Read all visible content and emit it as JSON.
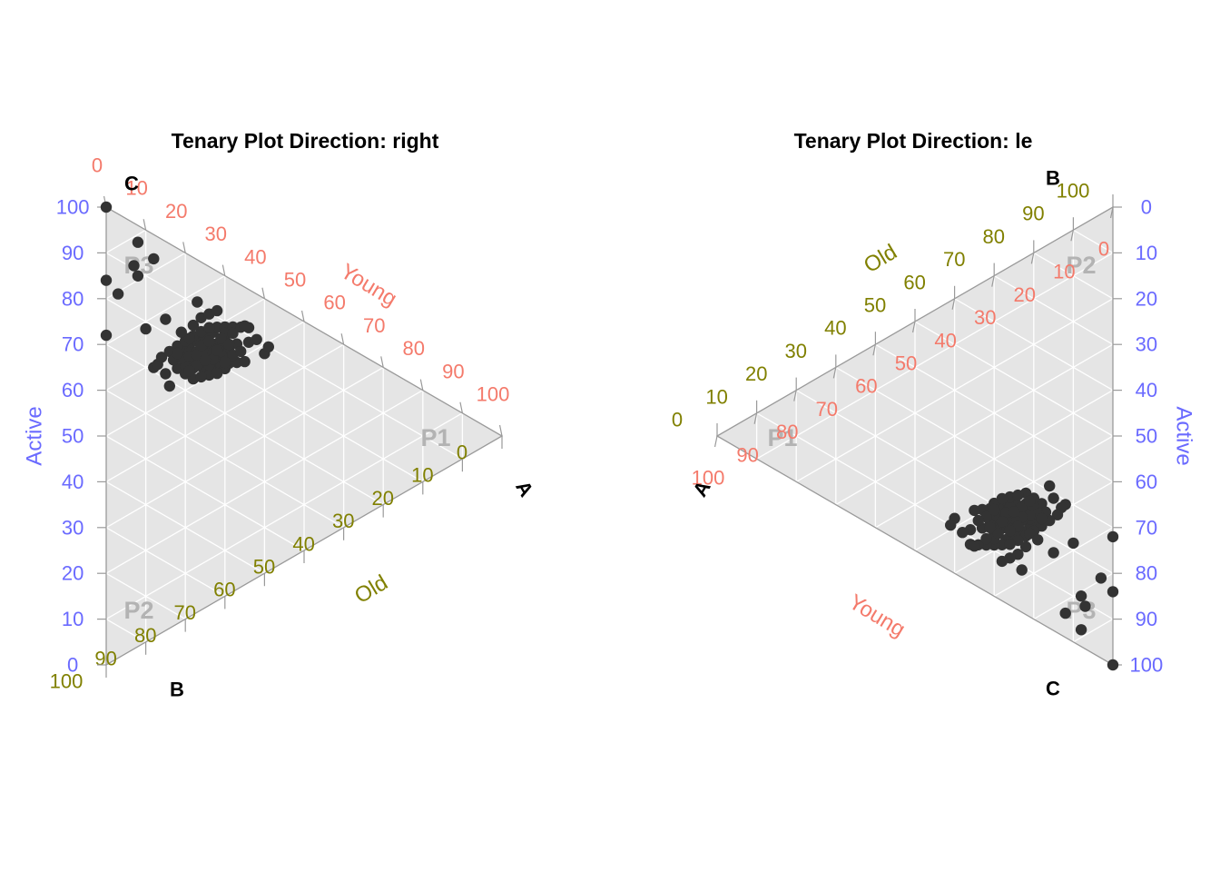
{
  "colors": {
    "panel": "#e5e5e5",
    "grid": "#ffffff",
    "border": "#9a9a9a",
    "point": "#333333",
    "young": "#f47a6b",
    "old": "#808000",
    "active": "#6a6aff",
    "region_label": "#b3b3b3"
  },
  "chart_data": [
    {
      "type": "scatter",
      "subtype": "ternary",
      "title": "Tenary Plot Direction: right",
      "direction": "right",
      "vertex_labels": {
        "A": "A",
        "B": "B",
        "C": "C"
      },
      "axes": {
        "young": {
          "label": "Young",
          "ticks": [
            "0",
            "10",
            "20",
            "30",
            "40",
            "50",
            "60",
            "70",
            "80",
            "90",
            "100"
          ]
        },
        "old": {
          "label": "Old",
          "ticks": [
            "0",
            "10",
            "20",
            "30",
            "40",
            "50",
            "60",
            "70",
            "80",
            "90",
            "100"
          ]
        },
        "active": {
          "label": "Active",
          "ticks": [
            "0",
            "10",
            "20",
            "30",
            "40",
            "50",
            "60",
            "70",
            "80",
            "90",
            "100"
          ]
        }
      },
      "region_labels": [
        "P1",
        "P2",
        "P3"
      ],
      "grid": true,
      "points_xy": [
        [
          0,
          100
        ],
        [
          8,
          96
        ],
        [
          12,
          94
        ],
        [
          7,
          90
        ],
        [
          8,
          88
        ],
        [
          0,
          84
        ],
        [
          3,
          82
        ],
        [
          10,
          76
        ],
        [
          12,
          67
        ],
        [
          13,
          68
        ],
        [
          14,
          70
        ],
        [
          16,
          72
        ],
        [
          15,
          66
        ],
        [
          16,
          63
        ],
        [
          18,
          68
        ],
        [
          20,
          70
        ],
        [
          22,
          72
        ],
        [
          24,
          74
        ],
        [
          26,
          76
        ],
        [
          19,
          73
        ],
        [
          21,
          75
        ],
        [
          23,
          77
        ],
        [
          25,
          79
        ],
        [
          27,
          81
        ],
        [
          28,
          83
        ],
        [
          30,
          84
        ],
        [
          32,
          85
        ],
        [
          34,
          86
        ],
        [
          36,
          87
        ],
        [
          22,
          71
        ],
        [
          24,
          72
        ],
        [
          26,
          73
        ],
        [
          28,
          74
        ],
        [
          30,
          75
        ],
        [
          18,
          74
        ],
        [
          20,
          76
        ],
        [
          22,
          78
        ],
        [
          24,
          80
        ],
        [
          26,
          82
        ],
        [
          28,
          78
        ],
        [
          30,
          80
        ],
        [
          25,
          70
        ],
        [
          27,
          71
        ],
        [
          29,
          72
        ],
        [
          31,
          73
        ],
        [
          33,
          74
        ],
        [
          35,
          75
        ],
        [
          20,
          69
        ],
        [
          22,
          69
        ],
        [
          24,
          70
        ],
        [
          26,
          71
        ],
        [
          21,
          73
        ],
        [
          23,
          74
        ],
        [
          25,
          75
        ],
        [
          27,
          76
        ],
        [
          29,
          77
        ],
        [
          17,
          70
        ],
        [
          19,
          71
        ],
        [
          21,
          72
        ],
        [
          23,
          73
        ],
        [
          25,
          74
        ],
        [
          27,
          75
        ],
        [
          29,
          76
        ],
        [
          31,
          78
        ],
        [
          33,
          80
        ],
        [
          23,
          88
        ],
        [
          24,
          84
        ],
        [
          22,
          81
        ],
        [
          21,
          77
        ],
        [
          19,
          78
        ],
        [
          15,
          80
        ],
        [
          26,
          86
        ],
        [
          30,
          82
        ],
        [
          28,
          88
        ],
        [
          32,
          83
        ],
        [
          40,
          80
        ],
        [
          35,
          87
        ],
        [
          41,
          83
        ],
        [
          0,
          72
        ],
        [
          26,
          68
        ],
        [
          22,
          66
        ],
        [
          24,
          67
        ],
        [
          20,
          67
        ],
        [
          18,
          72
        ],
        [
          30,
          71
        ],
        [
          28,
          69
        ],
        [
          32,
          76
        ],
        [
          34,
          78
        ],
        [
          36,
          82
        ],
        [
          38,
          84
        ],
        [
          29,
          80
        ],
        [
          31,
          79
        ],
        [
          27,
          73
        ],
        [
          24,
          76
        ],
        [
          26,
          78
        ],
        [
          23,
          70
        ],
        [
          21,
          68
        ],
        [
          25,
          72
        ],
        [
          28,
          76
        ],
        [
          30,
          73
        ]
      ]
    },
    {
      "type": "scatter",
      "subtype": "ternary",
      "title": "Tenary Plot Direction: le",
      "direction": "left",
      "vertex_labels": {
        "A": "A",
        "B": "B",
        "C": "C"
      },
      "axes": {
        "young": {
          "label": "Young",
          "ticks": [
            "0",
            "10",
            "20",
            "30",
            "40",
            "50",
            "60",
            "70",
            "80",
            "90",
            "100"
          ]
        },
        "old": {
          "label": "Old",
          "ticks": [
            "0",
            "10",
            "20",
            "30",
            "40",
            "50",
            "60",
            "70",
            "80",
            "90",
            "100"
          ]
        },
        "active": {
          "label": "Active",
          "ticks": [
            "0",
            "10",
            "20",
            "30",
            "40",
            "50",
            "60",
            "70",
            "80",
            "90",
            "100"
          ]
        }
      },
      "region_labels": [
        "P1",
        "P2",
        "P3"
      ],
      "grid": true,
      "points_xy": [
        [
          0,
          100
        ],
        [
          8,
          96
        ],
        [
          12,
          94
        ],
        [
          7,
          90
        ],
        [
          8,
          88
        ],
        [
          0,
          84
        ],
        [
          3,
          82
        ],
        [
          10,
          76
        ],
        [
          12,
          67
        ],
        [
          13,
          68
        ],
        [
          14,
          70
        ],
        [
          16,
          72
        ],
        [
          15,
          66
        ],
        [
          16,
          63
        ],
        [
          18,
          68
        ],
        [
          20,
          70
        ],
        [
          22,
          72
        ],
        [
          24,
          74
        ],
        [
          26,
          76
        ],
        [
          19,
          73
        ],
        [
          21,
          75
        ],
        [
          23,
          77
        ],
        [
          25,
          79
        ],
        [
          27,
          81
        ],
        [
          28,
          83
        ],
        [
          30,
          84
        ],
        [
          32,
          85
        ],
        [
          34,
          86
        ],
        [
          36,
          87
        ],
        [
          22,
          71
        ],
        [
          24,
          72
        ],
        [
          26,
          73
        ],
        [
          28,
          74
        ],
        [
          30,
          75
        ],
        [
          18,
          74
        ],
        [
          20,
          76
        ],
        [
          22,
          78
        ],
        [
          24,
          80
        ],
        [
          26,
          82
        ],
        [
          28,
          78
        ],
        [
          30,
          80
        ],
        [
          25,
          70
        ],
        [
          27,
          71
        ],
        [
          29,
          72
        ],
        [
          31,
          73
        ],
        [
          33,
          74
        ],
        [
          35,
          75
        ],
        [
          20,
          69
        ],
        [
          22,
          69
        ],
        [
          24,
          70
        ],
        [
          26,
          71
        ],
        [
          21,
          73
        ],
        [
          23,
          74
        ],
        [
          25,
          75
        ],
        [
          27,
          76
        ],
        [
          29,
          77
        ],
        [
          17,
          70
        ],
        [
          19,
          71
        ],
        [
          21,
          72
        ],
        [
          23,
          73
        ],
        [
          25,
          74
        ],
        [
          27,
          75
        ],
        [
          29,
          76
        ],
        [
          31,
          78
        ],
        [
          33,
          80
        ],
        [
          23,
          88
        ],
        [
          24,
          84
        ],
        [
          22,
          81
        ],
        [
          21,
          77
        ],
        [
          19,
          78
        ],
        [
          15,
          80
        ],
        [
          26,
          86
        ],
        [
          30,
          82
        ],
        [
          28,
          88
        ],
        [
          32,
          83
        ],
        [
          40,
          80
        ],
        [
          35,
          87
        ],
        [
          41,
          83
        ],
        [
          0,
          72
        ],
        [
          26,
          68
        ],
        [
          22,
          66
        ],
        [
          24,
          67
        ],
        [
          20,
          67
        ],
        [
          18,
          72
        ],
        [
          30,
          71
        ],
        [
          28,
          69
        ],
        [
          32,
          76
        ],
        [
          34,
          78
        ],
        [
          36,
          82
        ],
        [
          38,
          84
        ],
        [
          29,
          80
        ],
        [
          31,
          79
        ],
        [
          27,
          73
        ],
        [
          24,
          76
        ],
        [
          26,
          78
        ],
        [
          23,
          70
        ],
        [
          21,
          68
        ],
        [
          25,
          72
        ],
        [
          28,
          76
        ],
        [
          30,
          73
        ]
      ]
    }
  ]
}
